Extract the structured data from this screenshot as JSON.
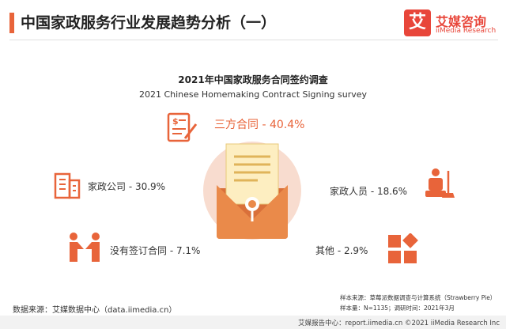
{
  "header": {
    "title": "中国家政服务行业发展趋势分析（一）",
    "logo_mark": "艾",
    "logo_cn": "艾媒咨询",
    "logo_en": "iiMedia Research"
  },
  "chart_data": {
    "type": "infographic",
    "title": "2021年中国家政服务合同签约调查",
    "subtitle": "2021 Chinese Homemaking Contract Signing survey",
    "items": [
      {
        "label": "三方合同",
        "value": 40.4,
        "display": "三方合同 - 40.4%",
        "icon": "contract-signing-icon"
      },
      {
        "label": "家政公司",
        "value": 30.9,
        "display": "家政公司 - 30.9%",
        "icon": "office-building-icon"
      },
      {
        "label": "家政人员",
        "value": 18.6,
        "display": "家政人员 - 18.6%",
        "icon": "housekeeper-icon"
      },
      {
        "label": "没有签订合同",
        "value": 7.1,
        "display": "没有签订合同 - 7.1%",
        "icon": "handshake-icon"
      },
      {
        "label": "其他",
        "value": 2.9,
        "display": "其他 - 2.9%",
        "icon": "grid-blocks-icon"
      }
    ],
    "colors": {
      "accent": "#e8643a",
      "light": "#f8dccf",
      "paper": "#fdeec1"
    }
  },
  "footer": {
    "data_source": "数据来源：艾媒数据中心（data.iimedia.cn）",
    "sample_source": "样本来源：草莓派数据调查与计算系统（Strawberry Pie）",
    "sample_size": "样本量：N=1135；调研时间：2021年3月",
    "bottom_line": "艾媒报告中心：report.iimedia.cn    ©2021  iiMedia Research  Inc"
  }
}
